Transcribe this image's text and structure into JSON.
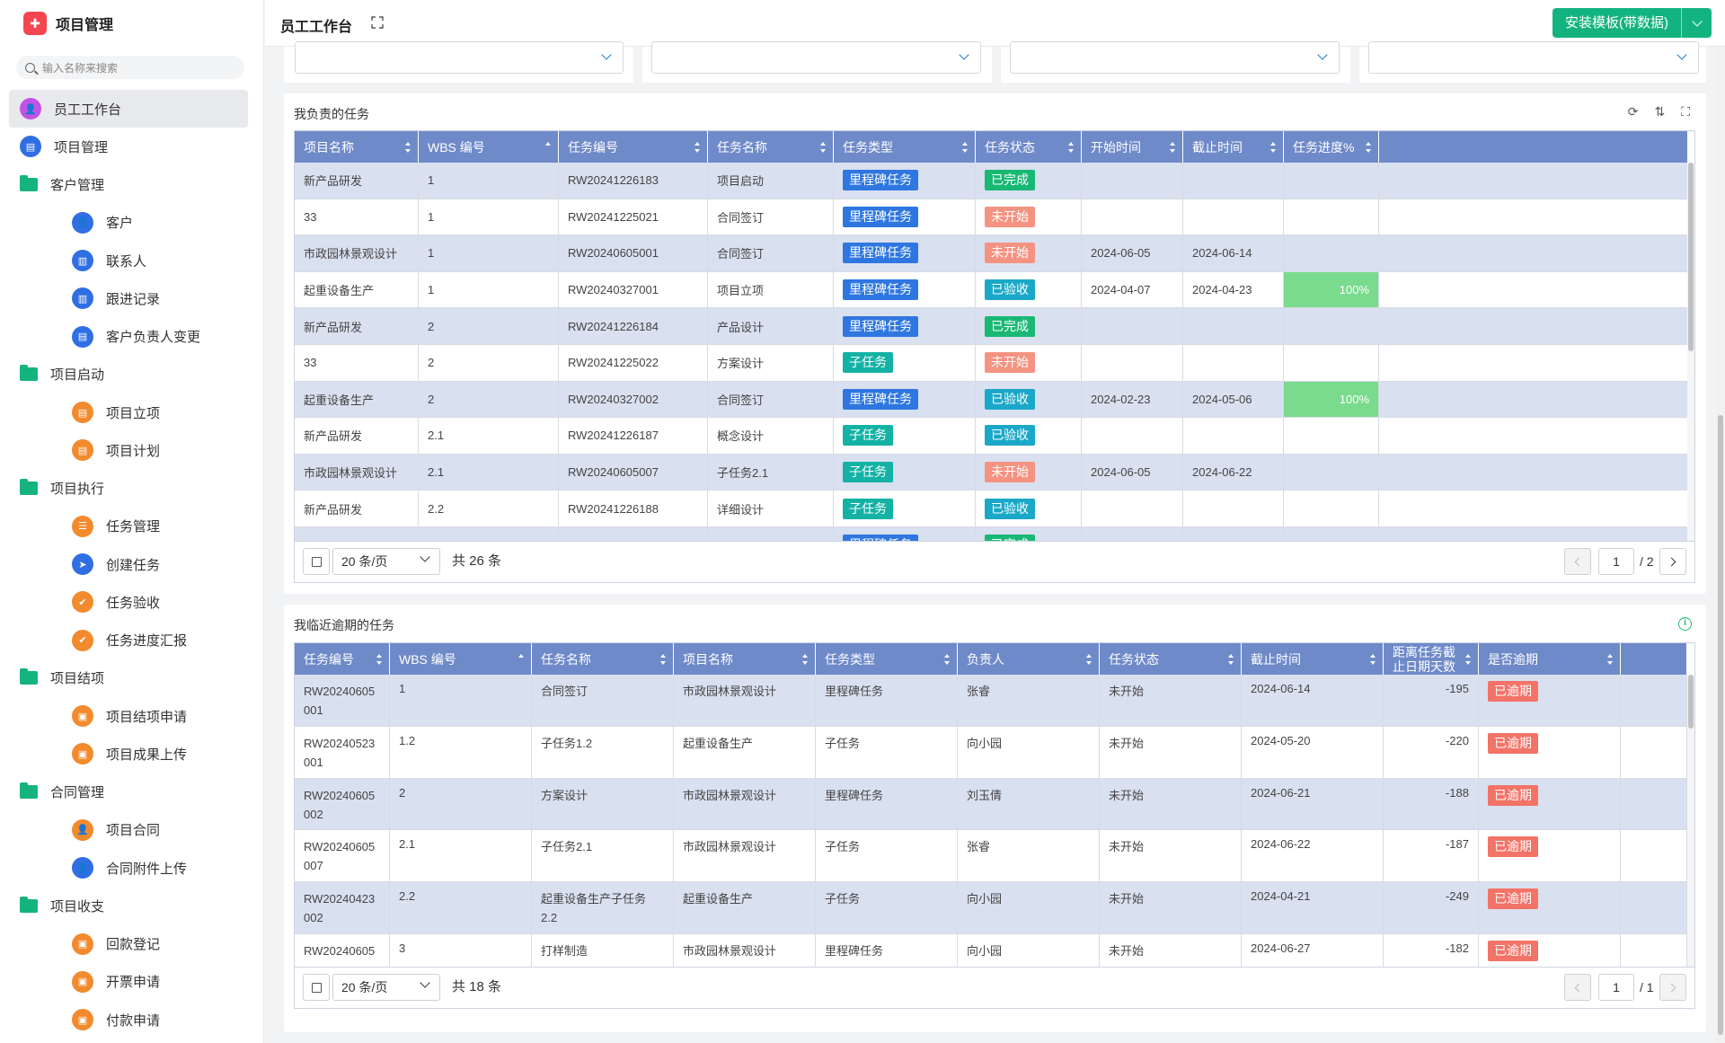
{
  "app": {
    "title": "项目管理",
    "logo_icon": "puzzle-icon"
  },
  "sidebar": {
    "search_placeholder": "输入名称来搜索",
    "items": [
      {
        "label": "员工工作台",
        "icon": "user-icon",
        "color": "#c153e5",
        "level": 0,
        "active": true
      },
      {
        "label": "项目管理",
        "icon": "document-icon",
        "color": "#2f6fe3",
        "level": 0
      },
      {
        "label": "客户管理",
        "icon": "folder-icon",
        "color": "#15b37e",
        "level": 0,
        "folder": true
      },
      {
        "label": "客户",
        "icon": "user-icon",
        "color": "#2f6fe3",
        "level": 1
      },
      {
        "label": "联系人",
        "icon": "clipboard-icon",
        "color": "#2f6fe3",
        "level": 1
      },
      {
        "label": "跟进记录",
        "icon": "clipboard-icon",
        "color": "#2f6fe3",
        "level": 1
      },
      {
        "label": "客户负责人变更",
        "icon": "document-icon",
        "color": "#2f6fe3",
        "level": 1
      },
      {
        "label": "项目启动",
        "icon": "folder-icon",
        "color": "#15b37e",
        "level": 0,
        "folder": true
      },
      {
        "label": "项目立项",
        "icon": "document-icon",
        "color": "#f28a2e",
        "level": 1
      },
      {
        "label": "项目计划",
        "icon": "document-icon",
        "color": "#f28a2e",
        "level": 1
      },
      {
        "label": "项目执行",
        "icon": "folder-icon",
        "color": "#15b37e",
        "level": 0,
        "folder": true
      },
      {
        "label": "任务管理",
        "icon": "list-icon",
        "color": "#f28a2e",
        "level": 1
      },
      {
        "label": "创建任务",
        "icon": "send-icon",
        "color": "#2f6fe3",
        "level": 1
      },
      {
        "label": "任务验收",
        "icon": "shield-icon",
        "color": "#f28a2e",
        "level": 1
      },
      {
        "label": "任务进度汇报",
        "icon": "shield-icon",
        "color": "#f28a2e",
        "level": 1
      },
      {
        "label": "项目结项",
        "icon": "folder-icon",
        "color": "#15b37e",
        "level": 0,
        "folder": true
      },
      {
        "label": "项目结项申请",
        "icon": "box-icon",
        "color": "#f28a2e",
        "level": 1
      },
      {
        "label": "项目成果上传",
        "icon": "box-icon",
        "color": "#f28a2e",
        "level": 1
      },
      {
        "label": "合同管理",
        "icon": "folder-icon",
        "color": "#15b37e",
        "level": 0,
        "folder": true
      },
      {
        "label": "项目合同",
        "icon": "user-icon",
        "color": "#f28a2e",
        "level": 1
      },
      {
        "label": "合同附件上传",
        "icon": "user-icon",
        "color": "#2f6fe3",
        "level": 1
      },
      {
        "label": "项目收支",
        "icon": "folder-icon",
        "color": "#15b37e",
        "level": 0,
        "folder": true
      },
      {
        "label": "回款登记",
        "icon": "box-icon",
        "color": "#f28a2e",
        "level": 1
      },
      {
        "label": "开票申请",
        "icon": "box-icon",
        "color": "#f28a2e",
        "level": 1
      },
      {
        "label": "付款申请",
        "icon": "box-icon",
        "color": "#f28a2e",
        "level": 1
      }
    ]
  },
  "topbar": {
    "title": "员工工作台",
    "install_label": "安装模板(带数据)"
  },
  "tasks_panel": {
    "title": "我负责的任务",
    "columns": [
      {
        "label": "项目名称",
        "w": 138
      },
      {
        "label": "WBS 编号",
        "w": 156,
        "sort": "up"
      },
      {
        "label": "任务编号",
        "w": 166
      },
      {
        "label": "任务名称",
        "w": 140
      },
      {
        "label": "任务类型",
        "w": 158
      },
      {
        "label": "任务状态",
        "w": 118
      },
      {
        "label": "开始时间",
        "w": 113
      },
      {
        "label": "截止时间",
        "w": 112
      },
      {
        "label": "任务进度%",
        "w": 106
      },
      {
        "label": "",
        "w": 344
      }
    ],
    "rows": [
      [
        "新产品研发",
        "1",
        "RW20241226183",
        "项目启动",
        {
          "tag": "里程碑任务",
          "c": "t-blue"
        },
        {
          "tag": "已完成",
          "c": "t-green"
        },
        "",
        "",
        ""
      ],
      [
        "33",
        "1",
        "RW20241225021",
        "合同签订",
        {
          "tag": "里程碑任务",
          "c": "t-blue"
        },
        {
          "tag": "未开始",
          "c": "t-salmon"
        },
        "",
        "",
        ""
      ],
      [
        "市政园林景观设计",
        "1",
        "RW20240605001",
        "合同签订",
        {
          "tag": "里程碑任务",
          "c": "t-blue"
        },
        {
          "tag": "未开始",
          "c": "t-salmon"
        },
        "2024-06-05",
        "2024-06-14",
        ""
      ],
      [
        "起重设备生产",
        "1",
        "RW20240327001",
        "项目立项",
        {
          "tag": "里程碑任务",
          "c": "t-blue"
        },
        {
          "tag": "已验收",
          "c": "t-cyan"
        },
        "2024-04-07",
        "2024-04-23",
        {
          "progress": "100%",
          "value": 100
        }
      ],
      [
        "新产品研发",
        "2",
        "RW20241226184",
        "产品设计",
        {
          "tag": "里程碑任务",
          "c": "t-blue"
        },
        {
          "tag": "已完成",
          "c": "t-green"
        },
        "",
        "",
        ""
      ],
      [
        "33",
        "2",
        "RW20241225022",
        "方案设计",
        {
          "tag": "子任务",
          "c": "t-teal"
        },
        {
          "tag": "未开始",
          "c": "t-salmon"
        },
        "",
        "",
        ""
      ],
      [
        "起重设备生产",
        "2",
        "RW20240327002",
        "合同签订",
        {
          "tag": "里程碑任务",
          "c": "t-blue"
        },
        {
          "tag": "已验收",
          "c": "t-cyan"
        },
        "2024-02-23",
        "2024-05-06",
        {
          "progress": "100%",
          "value": 100
        }
      ],
      [
        "新产品研发",
        "2.1",
        "RW20241226187",
        "概念设计",
        {
          "tag": "子任务",
          "c": "t-teal"
        },
        {
          "tag": "已验收",
          "c": "t-cyan"
        },
        "",
        "",
        ""
      ],
      [
        "市政园林景观设计",
        "2.1",
        "RW20240605007",
        "子任务2.1",
        {
          "tag": "子任务",
          "c": "t-teal"
        },
        {
          "tag": "未开始",
          "c": "t-salmon"
        },
        "2024-06-05",
        "2024-06-22",
        ""
      ],
      [
        "新产品研发",
        "2.2",
        "RW20241226188",
        "详细设计",
        {
          "tag": "子任务",
          "c": "t-teal"
        },
        {
          "tag": "已验收",
          "c": "t-cyan"
        },
        "",
        "",
        ""
      ],
      [
        "",
        "",
        "",
        "",
        {
          "tag": "里程碑任务",
          "c": "t-blue"
        },
        {
          "tag": "已完成",
          "c": "t-green"
        },
        "",
        "",
        ""
      ]
    ],
    "pager": {
      "page_size": "20 条/页",
      "total": "共 26 条",
      "page": "1",
      "of": "/ 2"
    }
  },
  "overdue_panel": {
    "title": "我临近逾期的任务",
    "columns": [
      {
        "label": "任务编号",
        "w": 106
      },
      {
        "label": "WBS 编号",
        "w": 158,
        "sort": "up"
      },
      {
        "label": "任务名称",
        "w": 158
      },
      {
        "label": "项目名称",
        "w": 158
      },
      {
        "label": "任务类型",
        "w": 158
      },
      {
        "label": "负责人",
        "w": 158
      },
      {
        "label": "任务状态",
        "w": 158
      },
      {
        "label": "截止时间",
        "w": 158
      },
      {
        "label": "距离任务截止日期天数",
        "w": 106
      },
      {
        "label": "是否逾期",
        "w": 158
      },
      {
        "label": "",
        "w": 74
      }
    ],
    "rows": [
      [
        "RW20240605\n001",
        "1",
        "合同签订",
        "市政园林景观设计",
        "里程碑任务",
        "张睿",
        "未开始",
        "2024-06-14",
        "-195",
        {
          "tag": "已逾期",
          "c": "t-red"
        }
      ],
      [
        "RW20240523\n001",
        "1.2",
        "子任务1.2",
        "起重设备生产",
        "子任务",
        "向小园",
        "未开始",
        "2024-05-20",
        "-220",
        {
          "tag": "已逾期",
          "c": "t-red"
        }
      ],
      [
        "RW20240605\n002",
        "2",
        "方案设计",
        "市政园林景观设计",
        "里程碑任务",
        "刘玉倩",
        "未开始",
        "2024-06-21",
        "-188",
        {
          "tag": "已逾期",
          "c": "t-red"
        }
      ],
      [
        "RW20240605\n007",
        "2.1",
        "子任务2.1",
        "市政园林景观设计",
        "子任务",
        "张睿",
        "未开始",
        "2024-06-22",
        "-187",
        {
          "tag": "已逾期",
          "c": "t-red"
        }
      ],
      [
        "RW20240423\n002",
        "2.2",
        "起重设备生产子任务\n2.2",
        "起重设备生产",
        "子任务",
        "向小园",
        "未开始",
        "2024-04-21",
        "-249",
        {
          "tag": "已逾期",
          "c": "t-red"
        }
      ],
      [
        "RW20240605\n",
        "3",
        "打样制造",
        "市政园林景观设计",
        "里程碑任务",
        "向小园",
        "未开始",
        "2024-06-27",
        "-182",
        {
          "tag": "已逾期",
          "c": "t-red"
        }
      ]
    ],
    "pager": {
      "page_size": "20 条/页",
      "total": "共 18 条",
      "page": "1",
      "of": "/ 1"
    }
  }
}
